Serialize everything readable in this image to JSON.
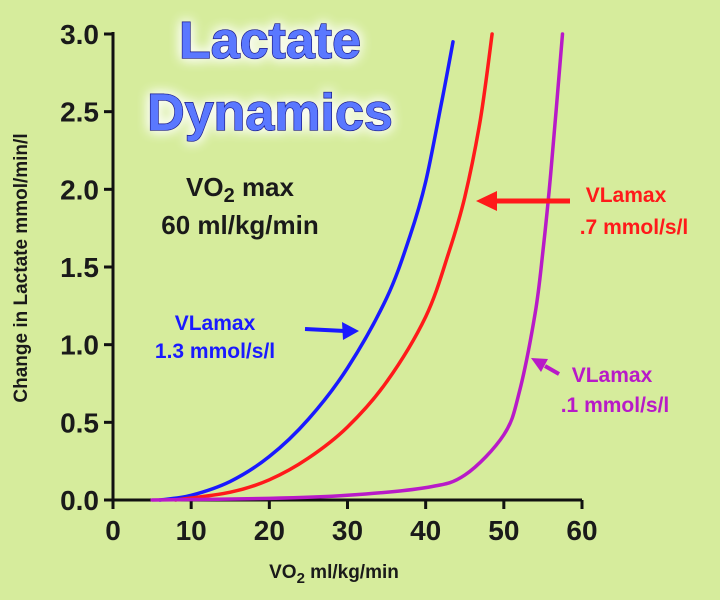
{
  "chart_data": {
    "type": "line",
    "title": "Lactate",
    "subtitle": "Dynamics",
    "xlabel": "VO",
    "xlabel_sub": "2",
    "xlabel_rest": " ml/kg/min",
    "ylabel": "Change in Lactate mmol/min/l",
    "xlim": [
      0,
      60
    ],
    "ylim": [
      0,
      3.0
    ],
    "xticks": [
      "0",
      "10",
      "20",
      "30",
      "40",
      "50",
      "60"
    ],
    "yticks": [
      "0.0",
      "0.5",
      "1.0",
      "1.5",
      "2.0",
      "2.5",
      "3.0"
    ],
    "series": [
      {
        "name": "VLamax 1.3 mmol/s/l",
        "color": "#1a1aff",
        "x": [
          6,
          10,
          15,
          20,
          25,
          30,
          35,
          38,
          40,
          42,
          43.5
        ],
        "y": [
          0.0,
          0.03,
          0.12,
          0.28,
          0.52,
          0.85,
          1.3,
          1.7,
          2.05,
          2.55,
          2.95
        ]
      },
      {
        "name": "VLamax .7 mmol/s/l",
        "color": "#ff1a1a",
        "x": [
          8,
          15,
          20,
          25,
          30,
          35,
          40,
          43,
          45,
          47,
          48.5
        ],
        "y": [
          0.0,
          0.05,
          0.13,
          0.27,
          0.47,
          0.76,
          1.18,
          1.6,
          1.95,
          2.45,
          3.0
        ]
      },
      {
        "name": "VLamax .1 mmol/s/l",
        "color": "#b81ac8",
        "x": [
          5,
          20,
          30,
          40,
          45,
          50,
          52,
          54,
          55,
          56,
          57.5
        ],
        "y": [
          0.0,
          0.01,
          0.03,
          0.08,
          0.16,
          0.42,
          0.7,
          1.2,
          1.6,
          2.1,
          3.0
        ]
      }
    ],
    "annotations": [
      {
        "line1": "VLamax",
        "line2": "1.3 mmol/s/l",
        "color": "#1a1aff"
      },
      {
        "line1": "VLamax",
        "line2": ".7 mmol/s/l",
        "color": "#ff1a1a"
      },
      {
        "line1": "VLamax",
        "line2": ".1 mmol/s/l",
        "color": "#b81ac8"
      }
    ],
    "vo2max_label": {
      "line1a": "VO",
      "line1sub": "2",
      "line1b": " max",
      "line2": "60 ml/kg/min"
    }
  }
}
